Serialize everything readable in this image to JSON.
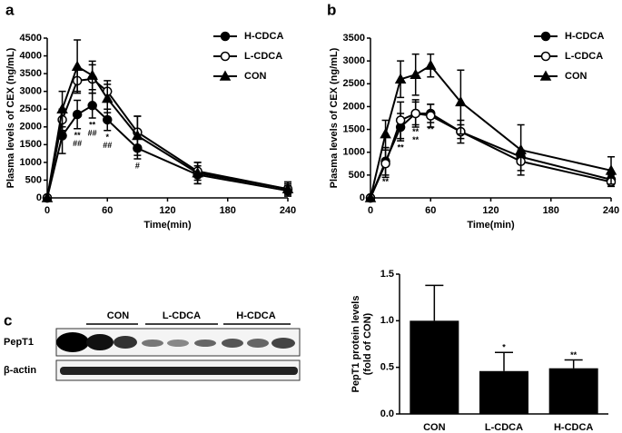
{
  "chart_data": [
    {
      "type": "line",
      "label": "a",
      "ylabel": "Plasma levels of CEX (ng/mL)",
      "xlabel": "Time(min)",
      "x": [
        0,
        15,
        30,
        45,
        60,
        90,
        150,
        240
      ],
      "xlim": [
        0,
        240
      ],
      "xticks": [
        0,
        60,
        120,
        180,
        240
      ],
      "ylim": [
        0,
        4500
      ],
      "yticks": [
        0,
        500,
        1000,
        1500,
        2000,
        2500,
        3000,
        3500,
        4000,
        4500
      ],
      "series": [
        {
          "name": "H-CDCA",
          "color": "#000000",
          "marker": "filled-circle",
          "values": [
            0,
            1750,
            2350,
            2600,
            2200,
            1400,
            650,
            200
          ],
          "errors": [
            0,
            500,
            400,
            350,
            300,
            300,
            250,
            150
          ]
        },
        {
          "name": "L-CDCA",
          "color": "#000000",
          "marker": "open-circle",
          "values": [
            0,
            2200,
            3300,
            3350,
            3000,
            1850,
            750,
            250
          ],
          "errors": [
            0,
            300,
            300,
            400,
            300,
            450,
            250,
            150
          ]
        },
        {
          "name": "CON",
          "color": "#000000",
          "marker": "triangle",
          "values": [
            0,
            2500,
            3700,
            3450,
            2800,
            1750,
            700,
            250
          ],
          "errors": [
            0,
            500,
            750,
            400,
            400,
            550,
            300,
            200
          ]
        }
      ],
      "annotations": [
        {
          "x": 30,
          "labels": [
            "**",
            "##"
          ]
        },
        {
          "x": 45,
          "labels": [
            "**",
            "##"
          ]
        },
        {
          "x": 60,
          "labels": [
            "*",
            "##"
          ]
        },
        {
          "x": 90,
          "labels": [
            "#"
          ]
        }
      ]
    },
    {
      "type": "line",
      "label": "b",
      "ylabel": "Plasma levels of CEX (ng/mL)",
      "xlabel": "Time(min)",
      "x": [
        0,
        15,
        30,
        45,
        60,
        90,
        150,
        240
      ],
      "xlim": [
        0,
        240
      ],
      "xticks": [
        0,
        60,
        120,
        180,
        240
      ],
      "ylim": [
        0,
        3500
      ],
      "yticks": [
        0,
        500,
        1000,
        1500,
        2000,
        2500,
        3000,
        3500
      ],
      "series": [
        {
          "name": "H-CDCA",
          "color": "#000000",
          "marker": "filled-circle",
          "values": [
            0,
            800,
            1550,
            1850,
            1850,
            1450,
            900,
            400
          ],
          "errors": [
            0,
            300,
            300,
            250,
            200,
            150,
            150,
            100
          ]
        },
        {
          "name": "L-CDCA",
          "color": "#000000",
          "marker": "open-circle",
          "values": [
            0,
            750,
            1700,
            1850,
            1800,
            1450,
            800,
            350
          ],
          "errors": [
            0,
            300,
            400,
            300,
            250,
            250,
            200,
            100
          ]
        },
        {
          "name": "CON",
          "color": "#000000",
          "marker": "triangle",
          "values": [
            0,
            1400,
            2600,
            2700,
            2900,
            2100,
            1050,
            600
          ],
          "errors": [
            0,
            300,
            400,
            450,
            250,
            700,
            550,
            300
          ]
        }
      ],
      "annotations": [
        {
          "x": 15,
          "labels": [
            "**"
          ]
        },
        {
          "x": 30,
          "labels": [
            "**"
          ]
        },
        {
          "x": 45,
          "labels": [
            "**",
            "**"
          ]
        },
        {
          "x": 60,
          "labels": [
            "**"
          ]
        }
      ]
    },
    {
      "type": "bar",
      "ylabel": [
        "PepT1 protein levels",
        "(fold of CON)"
      ],
      "categories": [
        "CON",
        "L-CDCA",
        "H-CDCA"
      ],
      "values": [
        1.0,
        0.46,
        0.49
      ],
      "errors": [
        0.38,
        0.2,
        0.09
      ],
      "significance": [
        null,
        "*",
        "**"
      ],
      "color": "#000000",
      "ylim": [
        0,
        1.5
      ],
      "yticks": [
        {
          "value": 0,
          "label": "0.0"
        },
        {
          "value": 0.5,
          "label": "0.5"
        },
        {
          "value": 1,
          "label": "1.0"
        },
        {
          "value": 1.5,
          "label": "1.5"
        }
      ]
    }
  ],
  "blot": {
    "label": "c",
    "groups": [
      "CON",
      "L-CDCA",
      "H-CDCA"
    ],
    "rows": [
      "PepT1",
      "β-actin"
    ]
  }
}
